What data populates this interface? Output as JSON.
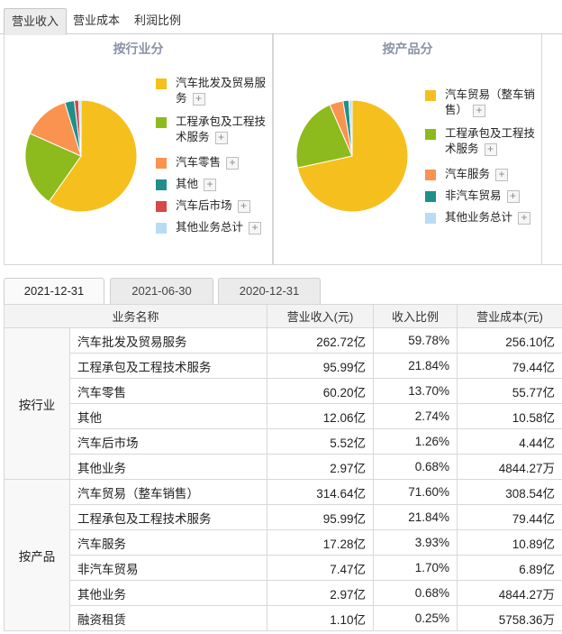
{
  "top_tabs": [
    "营业收入",
    "营业成本",
    "利润比例"
  ],
  "plus_symbol": "+",
  "chart_data": [
    {
      "type": "pie",
      "title": "按行业分",
      "legend_position": "right",
      "slices": [
        {
          "label": "汽车批发及贸易服务",
          "value": 59.78,
          "color": "#f5c01e"
        },
        {
          "label": "工程承包及工程技术服务",
          "value": 21.84,
          "color": "#8dba1c"
        },
        {
          "label": "汽车零售",
          "value": 13.7,
          "color": "#fa9350"
        },
        {
          "label": "其他",
          "value": 2.74,
          "color": "#1f8f8a"
        },
        {
          "label": "汽车后市场",
          "value": 1.26,
          "color": "#d84749"
        },
        {
          "label": "其他业务总计",
          "value": 0.68,
          "color": "#b9dcf5"
        }
      ]
    },
    {
      "type": "pie",
      "title": "按产品分",
      "legend_position": "right",
      "slices": [
        {
          "label": "汽车贸易（整车销售）",
          "value": 71.6,
          "color": "#f5c01e"
        },
        {
          "label": "工程承包及工程技术服务",
          "value": 21.84,
          "color": "#8dba1c"
        },
        {
          "label": "汽车服务",
          "value": 3.93,
          "color": "#fa9350"
        },
        {
          "label": "非汽车贸易",
          "value": 1.7,
          "color": "#1f8f8a"
        },
        {
          "label": "其他业务总计",
          "value": 0.93,
          "color": "#b9dcf5"
        }
      ]
    }
  ],
  "date_tabs": [
    "2021-12-31",
    "2021-06-30",
    "2020-12-31"
  ],
  "table": {
    "headers": [
      "业务名称",
      "营业收入(元)",
      "收入比例",
      "营业成本(元)"
    ],
    "groups": [
      {
        "name": "按行业",
        "rows": [
          {
            "name": "汽车批发及贸易服务",
            "revenue": "262.72亿",
            "ratio": "59.78%",
            "cost": "256.10亿"
          },
          {
            "name": "工程承包及工程技术服务",
            "revenue": "95.99亿",
            "ratio": "21.84%",
            "cost": "79.44亿"
          },
          {
            "name": "汽车零售",
            "revenue": "60.20亿",
            "ratio": "13.70%",
            "cost": "55.77亿"
          },
          {
            "name": "其他",
            "revenue": "12.06亿",
            "ratio": "2.74%",
            "cost": "10.58亿"
          },
          {
            "name": "汽车后市场",
            "revenue": "5.52亿",
            "ratio": "1.26%",
            "cost": "4.44亿"
          },
          {
            "name": "其他业务",
            "revenue": "2.97亿",
            "ratio": "0.68%",
            "cost": "4844.27万"
          }
        ]
      },
      {
        "name": "按产品",
        "rows": [
          {
            "name": "汽车贸易（整车销售）",
            "revenue": "314.64亿",
            "ratio": "71.60%",
            "cost": "308.54亿"
          },
          {
            "name": "工程承包及工程技术服务",
            "revenue": "95.99亿",
            "ratio": "21.84%",
            "cost": "79.44亿"
          },
          {
            "name": "汽车服务",
            "revenue": "17.28亿",
            "ratio": "3.93%",
            "cost": "10.89亿"
          },
          {
            "name": "非汽车贸易",
            "revenue": "7.47亿",
            "ratio": "1.70%",
            "cost": "6.89亿"
          },
          {
            "name": "其他业务",
            "revenue": "2.97亿",
            "ratio": "0.68%",
            "cost": "4844.27万"
          },
          {
            "name": "融资租赁",
            "revenue": "1.10亿",
            "ratio": "0.25%",
            "cost": "5758.36万"
          }
        ]
      }
    ]
  }
}
